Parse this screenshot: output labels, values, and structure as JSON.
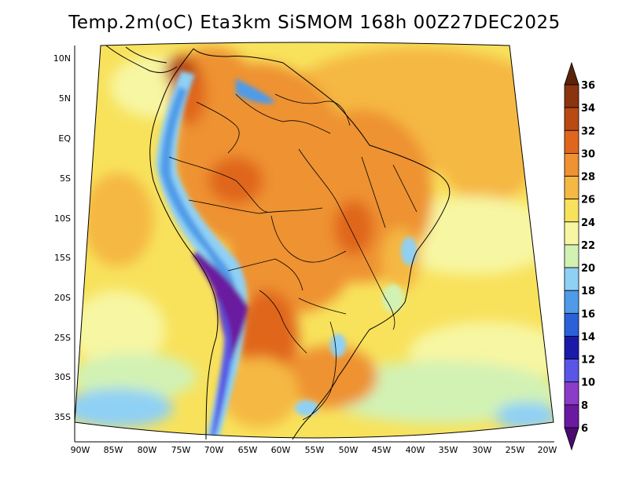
{
  "title": "Temp.2m(oC) Eta3km SiSMOM 168h 00Z27DEC2025",
  "map": {
    "region": "South America",
    "variable": "2m temperature",
    "units": "oC",
    "longitude_ticks": [
      "90W",
      "85W",
      "80W",
      "75W",
      "70W",
      "65W",
      "60W",
      "55W",
      "50W",
      "45W",
      "40W",
      "35W",
      "30W",
      "25W",
      "20W"
    ],
    "latitude_ticks": [
      "10N",
      "5N",
      "EQ",
      "5S",
      "10S",
      "15S",
      "20S",
      "25S",
      "30S",
      "35S"
    ]
  },
  "colorbar": {
    "labels": [
      "6",
      "8",
      "10",
      "12",
      "14",
      "16",
      "18",
      "20",
      "22",
      "24",
      "26",
      "28",
      "30",
      "32",
      "34",
      "36"
    ],
    "bins": [
      {
        "label": "<6",
        "color": "#4b0a6e"
      },
      {
        "label": "6-8",
        "color": "#6a1aa0"
      },
      {
        "label": "8-10",
        "color": "#8b3cc8"
      },
      {
        "label": "10-12",
        "color": "#5a55e6"
      },
      {
        "label": "12-14",
        "color": "#1a1aaa"
      },
      {
        "label": "14-16",
        "color": "#2a60d8"
      },
      {
        "label": "16-18",
        "color": "#4f9be8"
      },
      {
        "label": "18-20",
        "color": "#8fd0f5"
      },
      {
        "label": "20-22",
        "color": "#d2f2b4"
      },
      {
        "label": "22-24",
        "color": "#f7f6a2"
      },
      {
        "label": "24-26",
        "color": "#f8e25c"
      },
      {
        "label": "26-28",
        "color": "#f5b843"
      },
      {
        "label": "28-30",
        "color": "#ee9232"
      },
      {
        "label": "30-32",
        "color": "#e0661e"
      },
      {
        "label": "32-34",
        "color": "#b94a14"
      },
      {
        "label": "34-36",
        "color": "#8b3410"
      },
      {
        "label": ">36",
        "color": "#5b2308"
      }
    ]
  }
}
